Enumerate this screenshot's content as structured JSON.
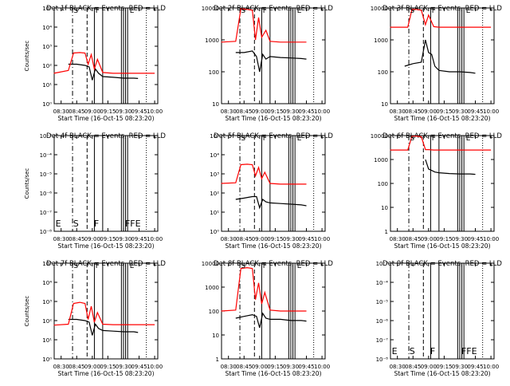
{
  "chart_data": [
    {
      "type": "line",
      "title": "Det 1f BLACK = Events, RED = LLD",
      "ylabel": "Counts/sec",
      "xlabel": "Start Time (16-Oct-15 08:23:20)",
      "yscale": "log",
      "ylim": [
        1,
        1000000
      ],
      "y_ticks": [
        "10^0",
        "10^1",
        "10^2",
        "10^3",
        "10^4",
        "10^5"
      ],
      "x_ticks": [
        "08:30",
        "08:45",
        "09:00",
        "09:15",
        "09:30",
        "09:45",
        "10:00"
      ],
      "markers": [
        "S",
        "F",
        "E"
      ],
      "series": [
        {
          "name": "Events",
          "color": "#000000",
          "x": [
            "08:37",
            "08:45",
            "08:53",
            "08:57",
            "09:00",
            "09:03",
            "09:06",
            "09:10",
            "09:20",
            "09:30",
            "09:40",
            "09:44"
          ],
          "values": [
            300,
            300,
            250,
            200,
            30,
            150,
            80,
            50,
            45,
            40,
            40,
            38
          ]
        },
        {
          "name": "LLD",
          "color": "#ff0000",
          "x": [
            "08:23",
            "08:37",
            "08:42",
            "08:48",
            "08:53",
            "08:56",
            "08:59",
            "09:02",
            "09:05",
            "09:10",
            "09:20",
            "09:30",
            "10:00"
          ],
          "values": [
            80,
            120,
            1500,
            1600,
            1500,
            300,
            1200,
            150,
            600,
            90,
            80,
            80,
            80
          ]
        }
      ]
    },
    {
      "type": "line",
      "title": "Det 2f BLACK = Events, RED = LLD",
      "ylabel": "",
      "xlabel": "Start Time (16-Oct-15 08:23:20)",
      "yscale": "log",
      "ylim": [
        10,
        10000
      ],
      "y_ticks": [
        "10",
        "100",
        "1000",
        "10000"
      ],
      "x_ticks": [
        "08:30",
        "08:45",
        "09:00",
        "09:15",
        "09:30",
        "09:45",
        "10:00"
      ],
      "markers": [
        "S",
        "F",
        "E"
      ],
      "series": [
        {
          "name": "Events",
          "color": "#000000",
          "x": [
            "08:37",
            "08:45",
            "08:53",
            "08:57",
            "09:00",
            "09:03",
            "09:06",
            "09:10",
            "09:20",
            "09:30",
            "09:40",
            "09:45"
          ],
          "values": [
            400,
            400,
            450,
            300,
            100,
            350,
            250,
            300,
            280,
            270,
            260,
            250
          ]
        },
        {
          "name": "LLD",
          "color": "#ff0000",
          "x": [
            "08:23",
            "08:37",
            "08:42",
            "08:48",
            "08:53",
            "08:56",
            "08:59",
            "09:02",
            "09:06",
            "09:10",
            "09:20",
            "09:30",
            "09:45"
          ],
          "values": [
            850,
            900,
            9500,
            9000,
            8500,
            1000,
            5000,
            1200,
            2000,
            900,
            850,
            850,
            850
          ]
        }
      ]
    },
    {
      "type": "line",
      "title": "Det 3f BLACK = Events, RED = LLD",
      "ylabel": "",
      "xlabel": "Start Time (16-Oct-15 08:23:20)",
      "yscale": "log",
      "ylim": [
        10,
        10000
      ],
      "y_ticks": [
        "10",
        "100",
        "1000",
        "10000"
      ],
      "x_ticks": [
        "08:30",
        "08:45",
        "09:00",
        "09:15",
        "09:30",
        "09:45",
        "10:00"
      ],
      "markers": [
        "S",
        "F",
        "E"
      ],
      "series": [
        {
          "name": "Events",
          "color": "#000000",
          "x": [
            "08:37",
            "08:45",
            "08:53",
            "08:57",
            "09:00",
            "09:03",
            "09:06",
            "09:10",
            "09:20",
            "09:30",
            "09:40",
            "09:45"
          ],
          "values": [
            150,
            180,
            200,
            1000,
            400,
            350,
            150,
            110,
            100,
            100,
            95,
            90
          ]
        },
        {
          "name": "LLD",
          "color": "#ff0000",
          "x": [
            "08:23",
            "08:40",
            "08:44",
            "08:48",
            "08:53",
            "08:57",
            "09:00",
            "09:05",
            "09:10",
            "09:30",
            "10:00"
          ],
          "values": [
            2500,
            2500,
            9000,
            9000,
            8500,
            3000,
            6000,
            2600,
            2500,
            2500,
            2500
          ]
        }
      ]
    },
    {
      "type": "line",
      "title": "Det 4f BLACK = Events, RED = LLD",
      "ylabel": "Counts/sec",
      "xlabel": "Start Time (16-Oct-15 08:23:20)",
      "yscale": "log",
      "ylim": [
        1e-08,
        0.001
      ],
      "y_ticks": [
        "10^-8",
        "10^-7",
        "10^-6",
        "10^-5",
        "10^-4",
        "10^-3"
      ],
      "x_ticks": [
        "08:30",
        "08:45",
        "09:00",
        "09:15",
        "09:30",
        "09:45",
        "10:00"
      ],
      "markers": [
        "E",
        "S",
        "F",
        "FFE"
      ],
      "series": []
    },
    {
      "type": "line",
      "title": "Det 5f BLACK = Events, RED = LLD",
      "ylabel": "",
      "xlabel": "Start Time (16-Oct-15 08:23:20)",
      "yscale": "log",
      "ylim": [
        1,
        1000000
      ],
      "y_ticks": [
        "10^0",
        "10^1",
        "10^2",
        "10^3",
        "10^4",
        "10^5"
      ],
      "x_ticks": [
        "08:30",
        "08:45",
        "09:00",
        "09:15",
        "09:30",
        "09:45",
        "10:00"
      ],
      "markers": [
        "S",
        "F",
        "E"
      ],
      "series": [
        {
          "name": "Events",
          "color": "#000000",
          "x": [
            "08:37",
            "08:45",
            "08:53",
            "08:57",
            "09:00",
            "09:03",
            "09:06",
            "09:10",
            "09:20",
            "09:30",
            "09:40",
            "09:45"
          ],
          "values": [
            100,
            120,
            150,
            150,
            30,
            100,
            70,
            60,
            55,
            50,
            45,
            40
          ]
        },
        {
          "name": "LLD",
          "color": "#ff0000",
          "x": [
            "08:23",
            "08:37",
            "08:42",
            "08:48",
            "08:53",
            "08:56",
            "08:59",
            "09:02",
            "09:05",
            "09:10",
            "09:20",
            "09:30",
            "09:45"
          ],
          "values": [
            1000,
            1100,
            15000,
            16000,
            15000,
            3000,
            10000,
            2000,
            5000,
            1000,
            900,
            900,
            900
          ]
        }
      ]
    },
    {
      "type": "line",
      "title": "Det 6f BLACK = Events, RED = LLD",
      "ylabel": "",
      "xlabel": "Start Time (16-Oct-15 08:23:20)",
      "yscale": "log",
      "ylim": [
        1,
        10000
      ],
      "y_ticks": [
        "1",
        "10",
        "100",
        "1000",
        "10000"
      ],
      "x_ticks": [
        "08:30",
        "08:45",
        "09:00",
        "09:15",
        "09:30",
        "09:45",
        "10:00"
      ],
      "markers": [
        "S",
        "F",
        "E"
      ],
      "series": [
        {
          "name": "Events",
          "color": "#000000",
          "x": [
            "08:57",
            "09:00",
            "09:03",
            "09:06",
            "09:10",
            "09:20",
            "09:30",
            "09:40",
            "09:45"
          ],
          "values": [
            1000,
            400,
            350,
            300,
            280,
            260,
            250,
            250,
            240
          ]
        },
        {
          "name": "LLD",
          "color": "#ff0000",
          "x": [
            "08:23",
            "08:40",
            "08:44",
            "08:48",
            "08:53",
            "08:57",
            "09:00",
            "09:05",
            "09:10",
            "09:30",
            "10:00"
          ],
          "values": [
            2500,
            2500,
            9500,
            9500,
            9000,
            2600,
            2600,
            2500,
            2500,
            2500,
            2500
          ]
        }
      ]
    },
    {
      "type": "line",
      "title": "Det 7f BLACK = Events, RED = LLD",
      "ylabel": "Counts/sec",
      "xlabel": "Start Time (16-Oct-15 08:23:20)",
      "yscale": "log",
      "ylim": [
        1,
        1000000
      ],
      "y_ticks": [
        "10^0",
        "10^1",
        "10^2",
        "10^3",
        "10^4",
        "10^5"
      ],
      "x_ticks": [
        "08:30",
        "08:45",
        "09:00",
        "09:15",
        "09:30",
        "09:45",
        "10:00"
      ],
      "markers": [
        "S",
        "F",
        "E"
      ],
      "series": [
        {
          "name": "Events",
          "color": "#000000",
          "x": [
            "08:37",
            "08:45",
            "08:53",
            "08:57",
            "09:00",
            "09:03",
            "09:06",
            "09:10",
            "09:20",
            "09:30",
            "09:40",
            "09:44"
          ],
          "values": [
            300,
            300,
            250,
            200,
            30,
            150,
            80,
            60,
            55,
            50,
            50,
            45
          ]
        },
        {
          "name": "LLD",
          "color": "#ff0000",
          "x": [
            "08:23",
            "08:37",
            "08:42",
            "08:48",
            "08:53",
            "08:56",
            "08:59",
            "09:02",
            "09:05",
            "09:10",
            "09:20",
            "09:30",
            "10:00"
          ],
          "values": [
            130,
            150,
            3000,
            3500,
            3000,
            300,
            2000,
            200,
            800,
            150,
            140,
            140,
            140
          ]
        }
      ]
    },
    {
      "type": "line",
      "title": "Det 8f BLACK = Events, RED = LLD",
      "ylabel": "",
      "xlabel": "Start Time (16-Oct-15 08:23:20)",
      "yscale": "log",
      "ylim": [
        1,
        10000
      ],
      "y_ticks": [
        "1",
        "10",
        "100",
        "1000",
        "10000"
      ],
      "x_ticks": [
        "08:30",
        "08:45",
        "09:00",
        "09:15",
        "09:30",
        "09:45",
        "10:00"
      ],
      "markers": [
        "S",
        "F",
        "E"
      ],
      "series": [
        {
          "name": "Events",
          "color": "#000000",
          "x": [
            "08:37",
            "08:45",
            "08:53",
            "08:57",
            "09:00",
            "09:03",
            "09:06",
            "09:10",
            "09:20",
            "09:30",
            "09:40",
            "09:45"
          ],
          "values": [
            50,
            60,
            70,
            60,
            20,
            80,
            50,
            45,
            45,
            40,
            40,
            38
          ]
        },
        {
          "name": "LLD",
          "color": "#ff0000",
          "x": [
            "08:23",
            "08:37",
            "08:42",
            "08:48",
            "08:53",
            "08:56",
            "08:59",
            "09:02",
            "09:05",
            "09:10",
            "09:20",
            "09:30",
            "09:45"
          ],
          "values": [
            100,
            110,
            6000,
            6500,
            6000,
            300,
            1500,
            200,
            600,
            110,
            100,
            100,
            100
          ]
        }
      ]
    },
    {
      "type": "line",
      "title": "Det 9f BLACK = Events, RED = LLD",
      "ylabel": "",
      "xlabel": "Start Time (16-Oct-15 08:23:20)",
      "yscale": "log",
      "ylim": [
        1e-08,
        0.001
      ],
      "y_ticks": [
        "10^-8",
        "10^-7",
        "10^-6",
        "10^-5",
        "10^-4",
        "10^-3"
      ],
      "x_ticks": [
        "08:30",
        "08:45",
        "09:00",
        "09:15",
        "09:30",
        "09:45",
        "10:00"
      ],
      "markers": [
        "E",
        "S",
        "F",
        "FFE"
      ],
      "series": []
    }
  ]
}
